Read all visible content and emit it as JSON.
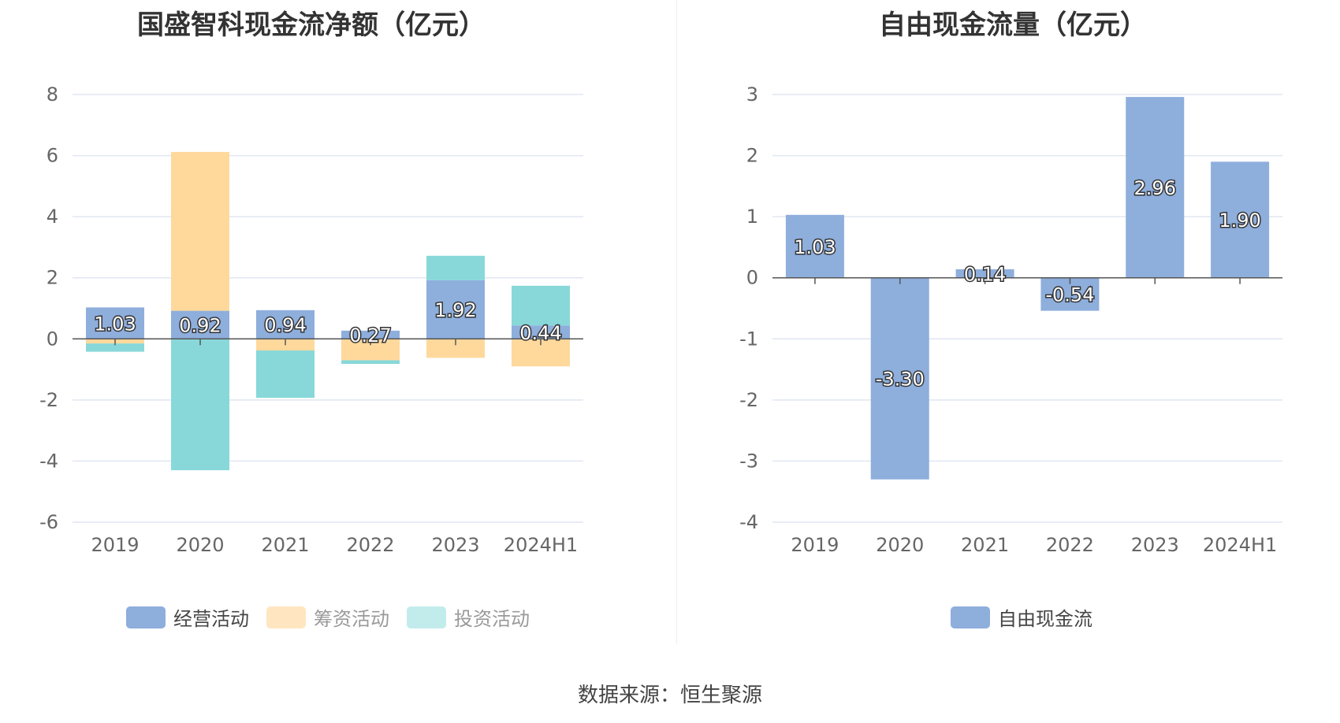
{
  "chart_data": [
    {
      "type": "bar",
      "stacked": true,
      "title": "国盛智科现金流净额（亿元）",
      "categories": [
        "2019",
        "2020",
        "2021",
        "2022",
        "2023",
        "2024H1"
      ],
      "ylim": [
        -6,
        8
      ],
      "yticks": [
        8,
        6,
        4,
        2,
        0,
        -2,
        -4,
        -6
      ],
      "grid": true,
      "legend_position": "bottom",
      "series": [
        {
          "name": "经营活动",
          "color": "#8eaedc",
          "values": [
            1.03,
            0.92,
            0.94,
            0.27,
            1.92,
            0.44
          ],
          "labels": [
            "1.03",
            "0.92",
            "0.94",
            "0.27",
            "1.92",
            "0.44"
          ]
        },
        {
          "name": "筹资活动",
          "color": "#ffd89c",
          "values": [
            -0.15,
            5.2,
            -0.38,
            -0.7,
            -0.62,
            -0.9
          ]
        },
        {
          "name": "投资活动",
          "color": "#88d8d9",
          "values": [
            -0.27,
            -4.3,
            -1.55,
            -0.12,
            0.8,
            1.3
          ]
        }
      ]
    },
    {
      "type": "bar",
      "title": "自由现金流量（亿元）",
      "categories": [
        "2019",
        "2020",
        "2021",
        "2022",
        "2023",
        "2024H1"
      ],
      "ylim": [
        -4,
        3
      ],
      "yticks": [
        3,
        2,
        1,
        0,
        -1,
        -2,
        -3,
        -4
      ],
      "grid": true,
      "legend_position": "bottom",
      "series": [
        {
          "name": "自由现金流",
          "color": "#8eaedc",
          "values": [
            1.03,
            -3.3,
            0.14,
            -0.54,
            2.96,
            1.9
          ],
          "labels": [
            "1.03",
            "-3.30",
            "0.14",
            "-0.54",
            "2.96",
            "1.90"
          ]
        }
      ]
    }
  ],
  "footer": {
    "source": "数据来源：恒生聚源"
  }
}
